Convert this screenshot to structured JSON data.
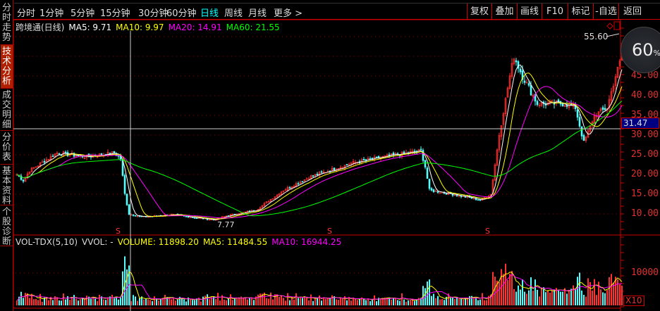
{
  "sidebar": {
    "items": [
      {
        "label": "分时走势",
        "active": false
      },
      {
        "label": "技术分析",
        "active": true
      },
      {
        "label": "成交明细",
        "active": false
      },
      {
        "label": "分价表",
        "active": false
      },
      {
        "label": "基本资料",
        "active": false
      },
      {
        "label": "个股诊断",
        "active": false
      }
    ]
  },
  "periods": [
    "分时",
    "1分钟",
    "5分钟",
    "15分钟",
    "30分钟",
    "60分钟",
    "日线",
    "周线",
    "月线",
    "更多 >"
  ],
  "active_period": "日线",
  "toolbar": [
    "复权",
    "叠加",
    "画线",
    "F10",
    "标记",
    "-自选",
    "返回"
  ],
  "legend": {
    "name": "跨境通(日线)",
    "ma5": "MA5: 9.71",
    "ma10": "MA10: 9.97",
    "ma20": "MA20: 14.91",
    "ma60": "MA60: 21.55"
  },
  "vol_legend": {
    "name": "VOL-TDX(5,10)",
    "vvol": "VVOL: -",
    "volume": "VOLUME: 11898.20",
    "ma5": "MA5: 11484.55",
    "ma10": "MA10: 16944.25"
  },
  "colors": {
    "up": "#ff3232",
    "down": "#54fcfc",
    "ma5": "#ffffff",
    "ma10": "#ffff00",
    "ma20": "#ff00ff",
    "ma60": "#00ff00",
    "grid": "#a00000"
  },
  "price_axis": [
    "45.00",
    "40.00",
    "35.00",
    "30.00",
    "25.00",
    "20.00",
    "15.00",
    "10.00"
  ],
  "volume_axis": [
    "10000"
  ],
  "current_price": "31.47",
  "high_label": "55.60",
  "low_label": "7.77",
  "gauge": {
    "value": "60",
    "unit": "%"
  },
  "volume_scale": "X10",
  "marker": "S",
  "chart_data": {
    "type": "candlestick",
    "price_keypoints": [
      [
        0,
        20
      ],
      [
        3,
        18.5
      ],
      [
        6,
        21
      ],
      [
        19,
        25.5
      ],
      [
        33,
        24.5
      ],
      [
        46,
        25.5
      ],
      [
        49,
        24
      ],
      [
        51,
        15
      ],
      [
        53,
        10
      ],
      [
        59,
        9.2
      ],
      [
        73,
        9.8
      ],
      [
        93,
        8.5
      ],
      [
        99,
        9.5
      ],
      [
        113,
        11
      ],
      [
        126,
        16
      ],
      [
        139,
        19.5
      ],
      [
        159,
        23
      ],
      [
        179,
        25
      ],
      [
        191,
        26
      ],
      [
        193,
        22
      ],
      [
        195,
        16
      ],
      [
        206,
        15
      ],
      [
        219,
        13.5
      ],
      [
        224,
        15
      ],
      [
        228,
        30
      ],
      [
        233,
        45
      ],
      [
        235,
        50
      ],
      [
        239,
        45
      ],
      [
        246,
        38
      ],
      [
        259,
        38
      ],
      [
        264,
        37
      ],
      [
        268,
        28
      ],
      [
        273,
        35
      ],
      [
        279,
        37
      ],
      [
        283,
        45
      ],
      [
        286,
        50
      ]
    ],
    "ylim": [
      5,
      57
    ]
  }
}
